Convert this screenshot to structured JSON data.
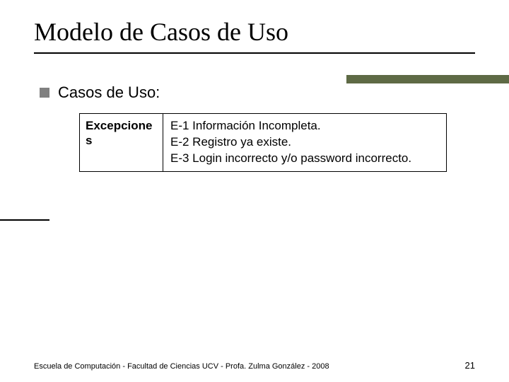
{
  "title": "Modelo de Casos de Uso",
  "bullet": "Casos de Uso:",
  "table": {
    "header": "Excepciones",
    "rows": [
      "E-1 Información Incompleta.",
      "E-2 Registro ya existe.",
      "E-3 Login incorrecto y/o password incorrecto."
    ]
  },
  "footer_text": "Escuela de Computación - Facultad de Ciencias UCV - Profa. Zulma González - 2008",
  "page_number": "21",
  "colors": {
    "accent": "#5e6a45",
    "bullet_square": "#808080",
    "text": "#000000",
    "background": "#ffffff"
  }
}
